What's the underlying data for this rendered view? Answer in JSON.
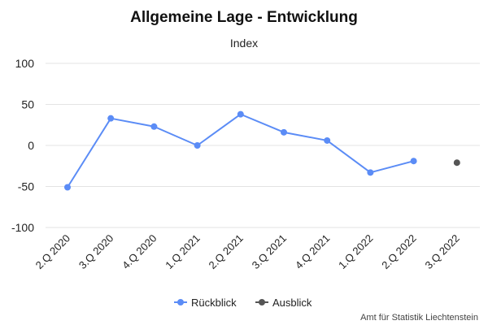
{
  "chart_data": {
    "type": "line",
    "title": "Allgemeine Lage - Entwicklung",
    "subtitle": "Index",
    "categories": [
      "2.Q 2020",
      "3.Q 2020",
      "4.Q 2020",
      "1.Q 2021",
      "2.Q 2021",
      "3.Q 2021",
      "4.Q 2021",
      "1.Q 2022",
      "2.Q 2022",
      "3.Q 2022"
    ],
    "series": [
      {
        "name": "Rückblick",
        "color": "#5b8cf6",
        "values": [
          -51,
          33,
          23,
          0,
          38,
          16,
          6,
          -33,
          -19,
          null
        ]
      },
      {
        "name": "Ausblick",
        "color": "#555555",
        "values": [
          null,
          null,
          null,
          null,
          null,
          null,
          null,
          null,
          null,
          -21
        ]
      }
    ],
    "yticks": [
      100,
      50,
      0,
      -50,
      -100
    ],
    "ylim": [
      -100,
      100
    ],
    "grid": true,
    "legend_position": "bottom-center",
    "credit": "Amt für Statistik Liechtenstein"
  }
}
